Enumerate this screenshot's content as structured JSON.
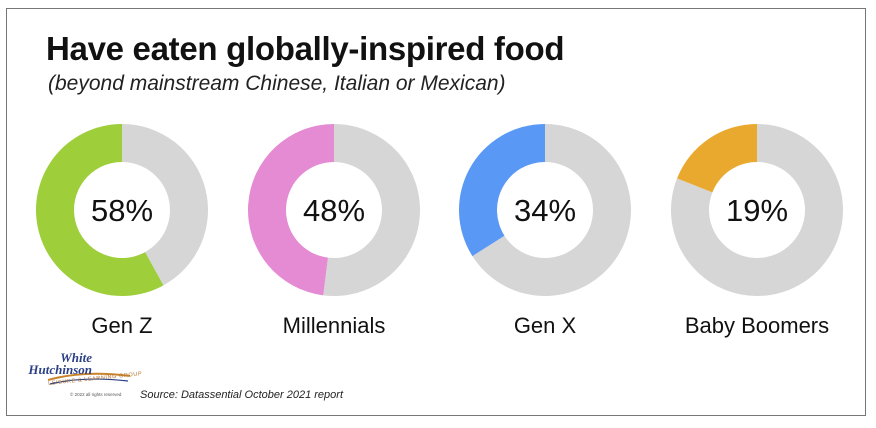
{
  "header": {
    "title": "Have eaten globally-inspired food",
    "subtitle": "(beyond mainstream Chinese, Italian or Mexican)"
  },
  "chart_data": {
    "type": "pie",
    "style": "donut",
    "unit": "%",
    "categories": [
      "Gen Z",
      "Millennials",
      "Gen X",
      "Baby Boomers"
    ],
    "values": [
      58,
      48,
      34,
      19
    ],
    "value_labels": [
      "58%",
      "48%",
      "34%",
      "19%"
    ],
    "colors": [
      "#9fce3b",
      "#e48bd3",
      "#5998f5",
      "#e9a92e"
    ],
    "remainder_color": "#d6d6d6"
  },
  "logo": {
    "text_line1": "White",
    "text_line2": "Hutchinson",
    "tagline": "LEISURE & LEARNING GROUP",
    "copyright": "© 2022 all rights reserved"
  },
  "footer": {
    "source": "Source: Datassential October 2021 report"
  }
}
